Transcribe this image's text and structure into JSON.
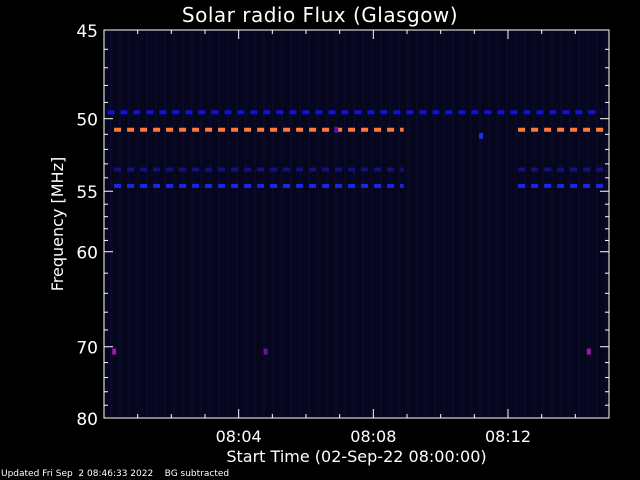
{
  "chart_data": {
    "type": "heatmap",
    "title": "Solar radio Flux (Glasgow)",
    "xlabel": "Start Time (02-Sep-22 08:00:00)",
    "ylabel": "Frequency [MHz]",
    "x_unit": "minutes after 08:00:00",
    "xlim": [
      0,
      15
    ],
    "ylim": [
      80,
      45
    ],
    "y_scale": "reciprocal",
    "x_ticks": [
      {
        "value": 4,
        "label": "08:04"
      },
      {
        "value": 8,
        "label": "08:08"
      },
      {
        "value": 12,
        "label": "08:12"
      }
    ],
    "y_ticks": [
      {
        "value": 45,
        "label": "45"
      },
      {
        "value": 50,
        "label": "50"
      },
      {
        "value": 55,
        "label": "55"
      },
      {
        "value": 60,
        "label": "60"
      },
      {
        "value": 70,
        "label": "70"
      },
      {
        "value": 80,
        "label": "80"
      }
    ],
    "bands": [
      {
        "freq_mhz": 49.6,
        "color": "#1010e0",
        "segments": [
          [
            0.1,
            14.8
          ]
        ]
      },
      {
        "freq_mhz": 50.7,
        "color": "#ff7a3a",
        "segments": [
          [
            0.3,
            8.9
          ],
          [
            12.3,
            14.9
          ]
        ]
      },
      {
        "freq_mhz": 53.4,
        "color": "#12127a",
        "segments": [
          [
            0.3,
            8.9
          ],
          [
            12.3,
            14.9
          ]
        ]
      },
      {
        "freq_mhz": 54.6,
        "color": "#1a28e6",
        "segments": [
          [
            0.3,
            8.9
          ],
          [
            12.3,
            14.9
          ]
        ]
      }
    ],
    "spots": [
      {
        "t": 0.3,
        "freq_mhz": 70.6,
        "color": "#9a1aa0"
      },
      {
        "t": 4.8,
        "freq_mhz": 70.6,
        "color": "#6a10a0"
      },
      {
        "t": 14.4,
        "freq_mhz": 70.6,
        "color": "#9a1aa0"
      },
      {
        "t": 6.9,
        "freq_mhz": 50.7,
        "color": "#4a1aa0"
      },
      {
        "t": 11.2,
        "freq_mhz": 51.1,
        "color": "#1a30e0"
      }
    ],
    "background": "#06061e",
    "grid": false
  },
  "footer": {
    "updated": "Updated Fri Sep  2 08:46:33 2022",
    "note": "BG subtracted"
  }
}
